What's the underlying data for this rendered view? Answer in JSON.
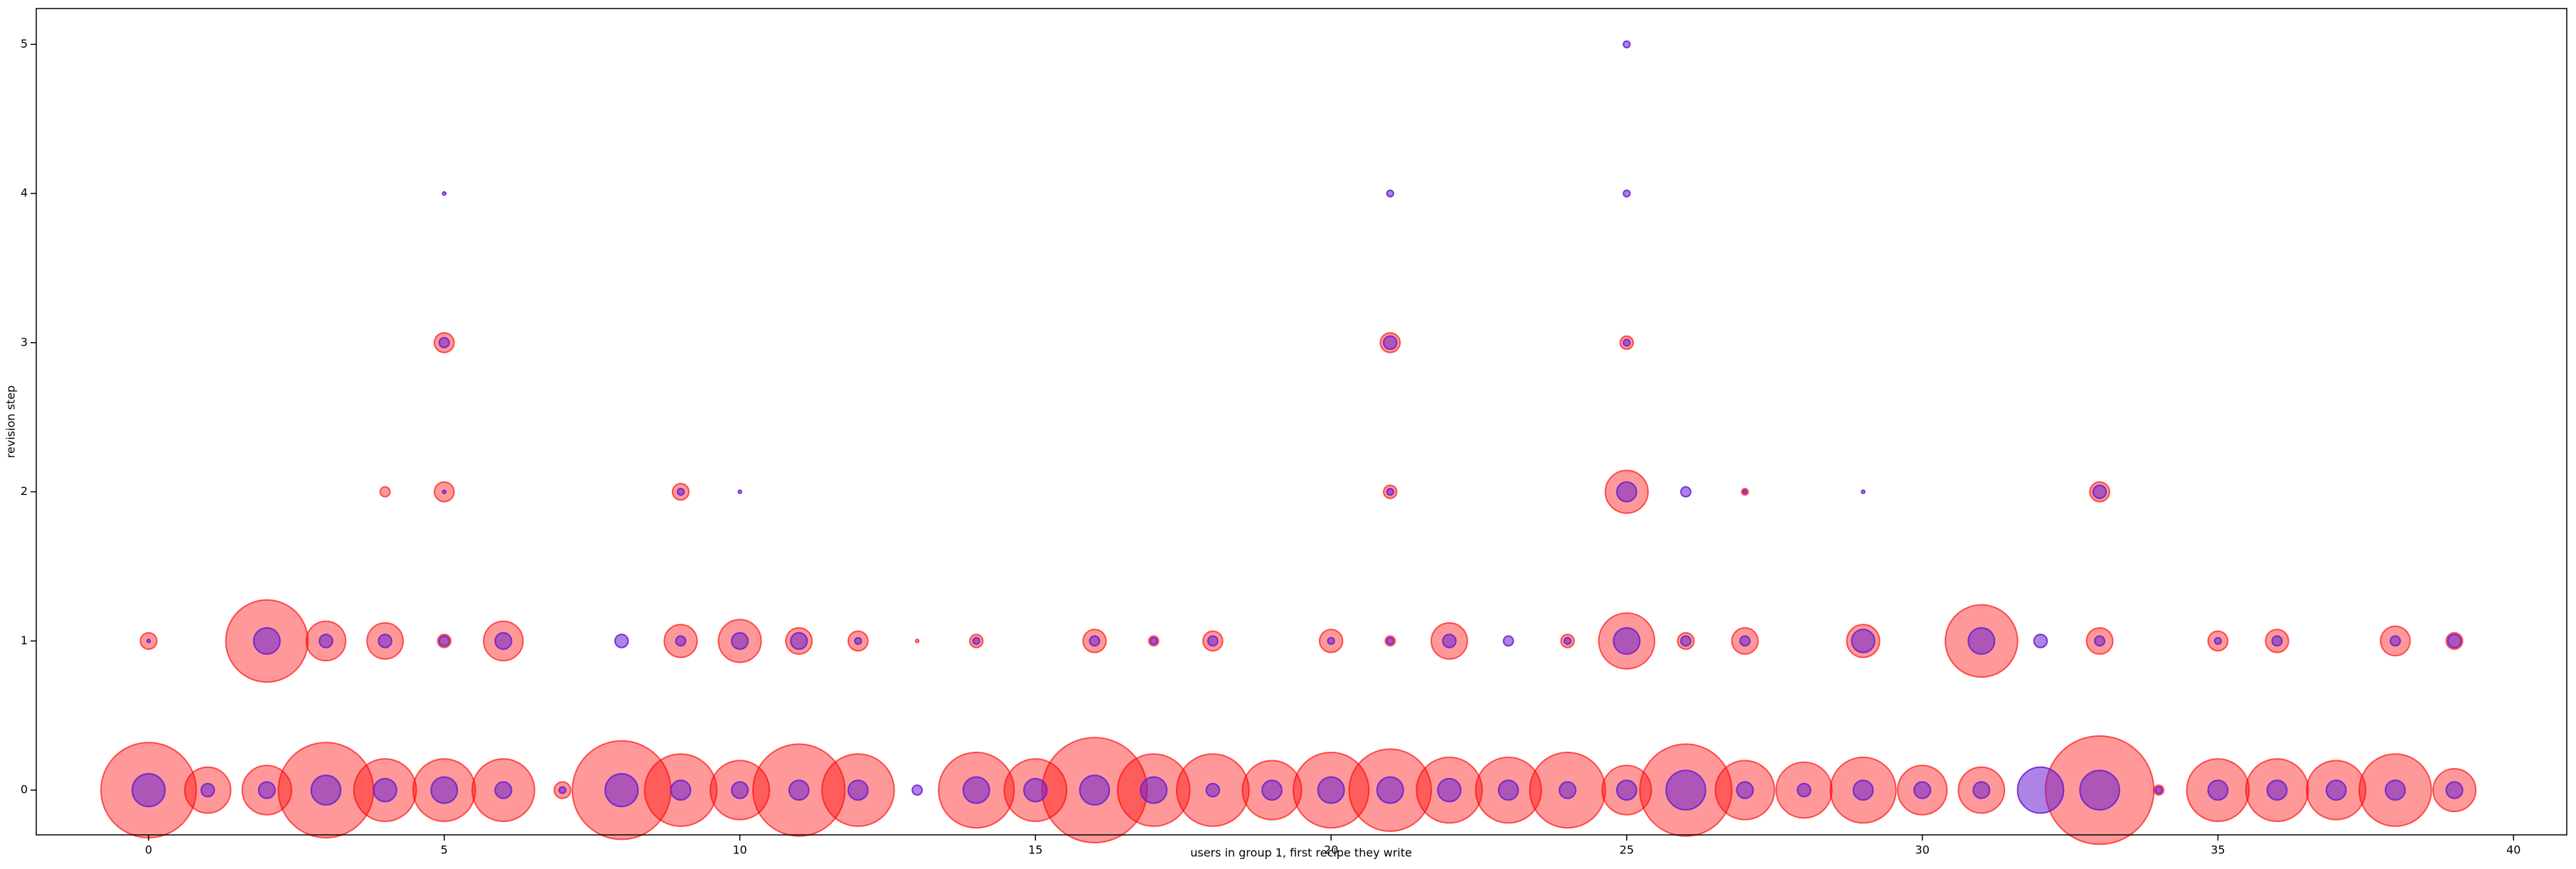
{
  "chart_data": {
    "type": "scatter",
    "xlabel": "users in group 1, first recipe they write",
    "ylabel": "revision step",
    "xlim": [
      -1.9,
      40.9
    ],
    "ylim": [
      -0.3,
      5.24
    ],
    "xticks": [
      0,
      5,
      10,
      15,
      20,
      25,
      30,
      35,
      40
    ],
    "yticks": [
      0,
      1,
      2,
      3,
      4,
      5
    ],
    "grid": false,
    "series": [
      {
        "color": "#ff0000",
        "alpha": 0.4,
        "x": [
          0,
          1,
          2,
          3,
          4,
          5,
          6,
          7,
          8,
          9,
          10,
          11,
          12,
          14,
          15,
          16,
          17,
          18,
          19,
          20,
          21,
          22,
          23,
          24,
          25,
          26,
          27,
          28,
          29,
          30,
          31,
          33,
          34,
          35,
          36,
          37,
          38,
          39,
          0,
          2,
          3,
          4,
          5,
          6,
          9,
          10,
          11,
          12,
          13,
          14,
          16,
          17,
          18,
          20,
          21,
          22,
          24,
          25,
          26,
          27,
          29,
          31,
          33,
          35,
          36,
          38,
          39,
          4,
          5,
          9,
          21,
          25,
          27,
          33,
          5,
          21,
          25
        ],
        "y": [
          0,
          0,
          0,
          0,
          0,
          0,
          0,
          0,
          0,
          0,
          0,
          0,
          0,
          0,
          0,
          0,
          0,
          0,
          0,
          0,
          0,
          0,
          0,
          0,
          0,
          0,
          0,
          0,
          0,
          0,
          0,
          0,
          0,
          0,
          0,
          0,
          0,
          0,
          1,
          1,
          1,
          1,
          1,
          1,
          1,
          1,
          1,
          1,
          1,
          1,
          1,
          1,
          1,
          1,
          1,
          1,
          1,
          1,
          1,
          1,
          1,
          1,
          1,
          1,
          1,
          1,
          1,
          2,
          2,
          2,
          2,
          2,
          2,
          2,
          3,
          3,
          3
        ],
        "sizes": [
          29,
          14,
          15,
          29,
          19,
          19,
          19,
          5,
          30,
          22,
          18,
          28,
          22,
          23,
          19,
          32,
          22,
          22,
          18,
          23,
          25,
          20,
          20,
          23,
          15,
          28,
          18,
          17,
          20,
          15,
          14,
          33,
          3,
          19,
          19,
          18,
          22,
          13,
          5,
          25,
          12,
          11,
          4,
          12,
          10,
          13,
          8,
          6,
          1,
          4,
          7,
          3,
          6,
          7,
          3,
          11,
          4,
          17,
          5,
          8,
          10,
          22,
          8,
          6,
          7,
          9,
          5,
          3,
          6,
          5,
          4,
          13,
          2,
          6,
          6,
          6,
          4
        ]
      },
      {
        "color": "#6a1fd0",
        "alpha": 0.55,
        "x": [
          0,
          1,
          2,
          3,
          4,
          5,
          6,
          7,
          8,
          9,
          10,
          11,
          12,
          13,
          14,
          15,
          16,
          17,
          18,
          19,
          20,
          21,
          22,
          23,
          24,
          25,
          26,
          27,
          28,
          29,
          30,
          31,
          32,
          33,
          34,
          35,
          36,
          37,
          38,
          39,
          0,
          2,
          3,
          4,
          5,
          6,
          8,
          9,
          10,
          11,
          12,
          14,
          16,
          17,
          18,
          20,
          21,
          22,
          23,
          24,
          25,
          26,
          27,
          29,
          31,
          32,
          33,
          35,
          36,
          38,
          39,
          5,
          9,
          10,
          21,
          25,
          26,
          27,
          29,
          33,
          5,
          21,
          25,
          5,
          21,
          25,
          25
        ],
        "y": [
          0,
          0,
          0,
          0,
          0,
          0,
          0,
          0,
          0,
          0,
          0,
          0,
          0,
          0,
          0,
          0,
          0,
          0,
          0,
          0,
          0,
          0,
          0,
          0,
          0,
          0,
          0,
          0,
          0,
          0,
          0,
          0,
          0,
          0,
          0,
          0,
          0,
          0,
          0,
          0,
          1,
          1,
          1,
          1,
          1,
          1,
          1,
          1,
          1,
          1,
          1,
          1,
          1,
          1,
          1,
          1,
          1,
          1,
          1,
          1,
          1,
          1,
          1,
          1,
          1,
          1,
          1,
          1,
          1,
          1,
          1,
          2,
          2,
          2,
          2,
          2,
          2,
          2,
          2,
          2,
          3,
          3,
          3,
          4,
          4,
          4,
          5
        ],
        "sizes": [
          10,
          4,
          5,
          9,
          7,
          8,
          5,
          2,
          10,
          6,
          5,
          6,
          6,
          3,
          8,
          7,
          9,
          8,
          4,
          6,
          8,
          8,
          7,
          6,
          5,
          6,
          12,
          5,
          4,
          6,
          5,
          5,
          14,
          12,
          2,
          6,
          6,
          6,
          6,
          5,
          1,
          8,
          4,
          4,
          3,
          5,
          4,
          3,
          5,
          5,
          2,
          2,
          3,
          2,
          3,
          2,
          2,
          4,
          3,
          2,
          8,
          3,
          3,
          7,
          8,
          4,
          3,
          2,
          3,
          3,
          4,
          1,
          2,
          1,
          2,
          6,
          3,
          1,
          1,
          4,
          3,
          4,
          2,
          1,
          2,
          2,
          2
        ]
      }
    ]
  }
}
